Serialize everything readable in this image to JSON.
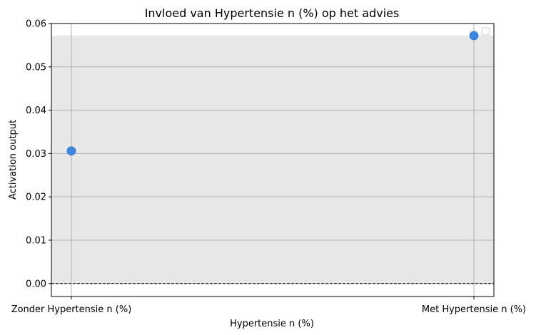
{
  "chart_data": {
    "type": "scatter",
    "title": "Invloed van Hypertensie n (%) op het advies",
    "xlabel": "Hypertensie n (%)",
    "ylabel": "Activation output",
    "categories": [
      "Zonder Hypertensie n (%)",
      "Met Hypertensie n (%)"
    ],
    "values": [
      0.0306,
      0.0572
    ],
    "ylim": [
      -0.003,
      0.06
    ],
    "yticks": [
      "0.00",
      "0.01",
      "0.02",
      "0.03",
      "0.04",
      "0.05",
      "0.06"
    ],
    "shaded_band": [
      0,
      0.0572
    ],
    "reference_line": 0,
    "grid": true,
    "legend": "top-right",
    "colors": {
      "point": "#3a87e6",
      "band": "#e7e7e7",
      "grid": "#b0b0b0",
      "reference": "#000000"
    }
  }
}
